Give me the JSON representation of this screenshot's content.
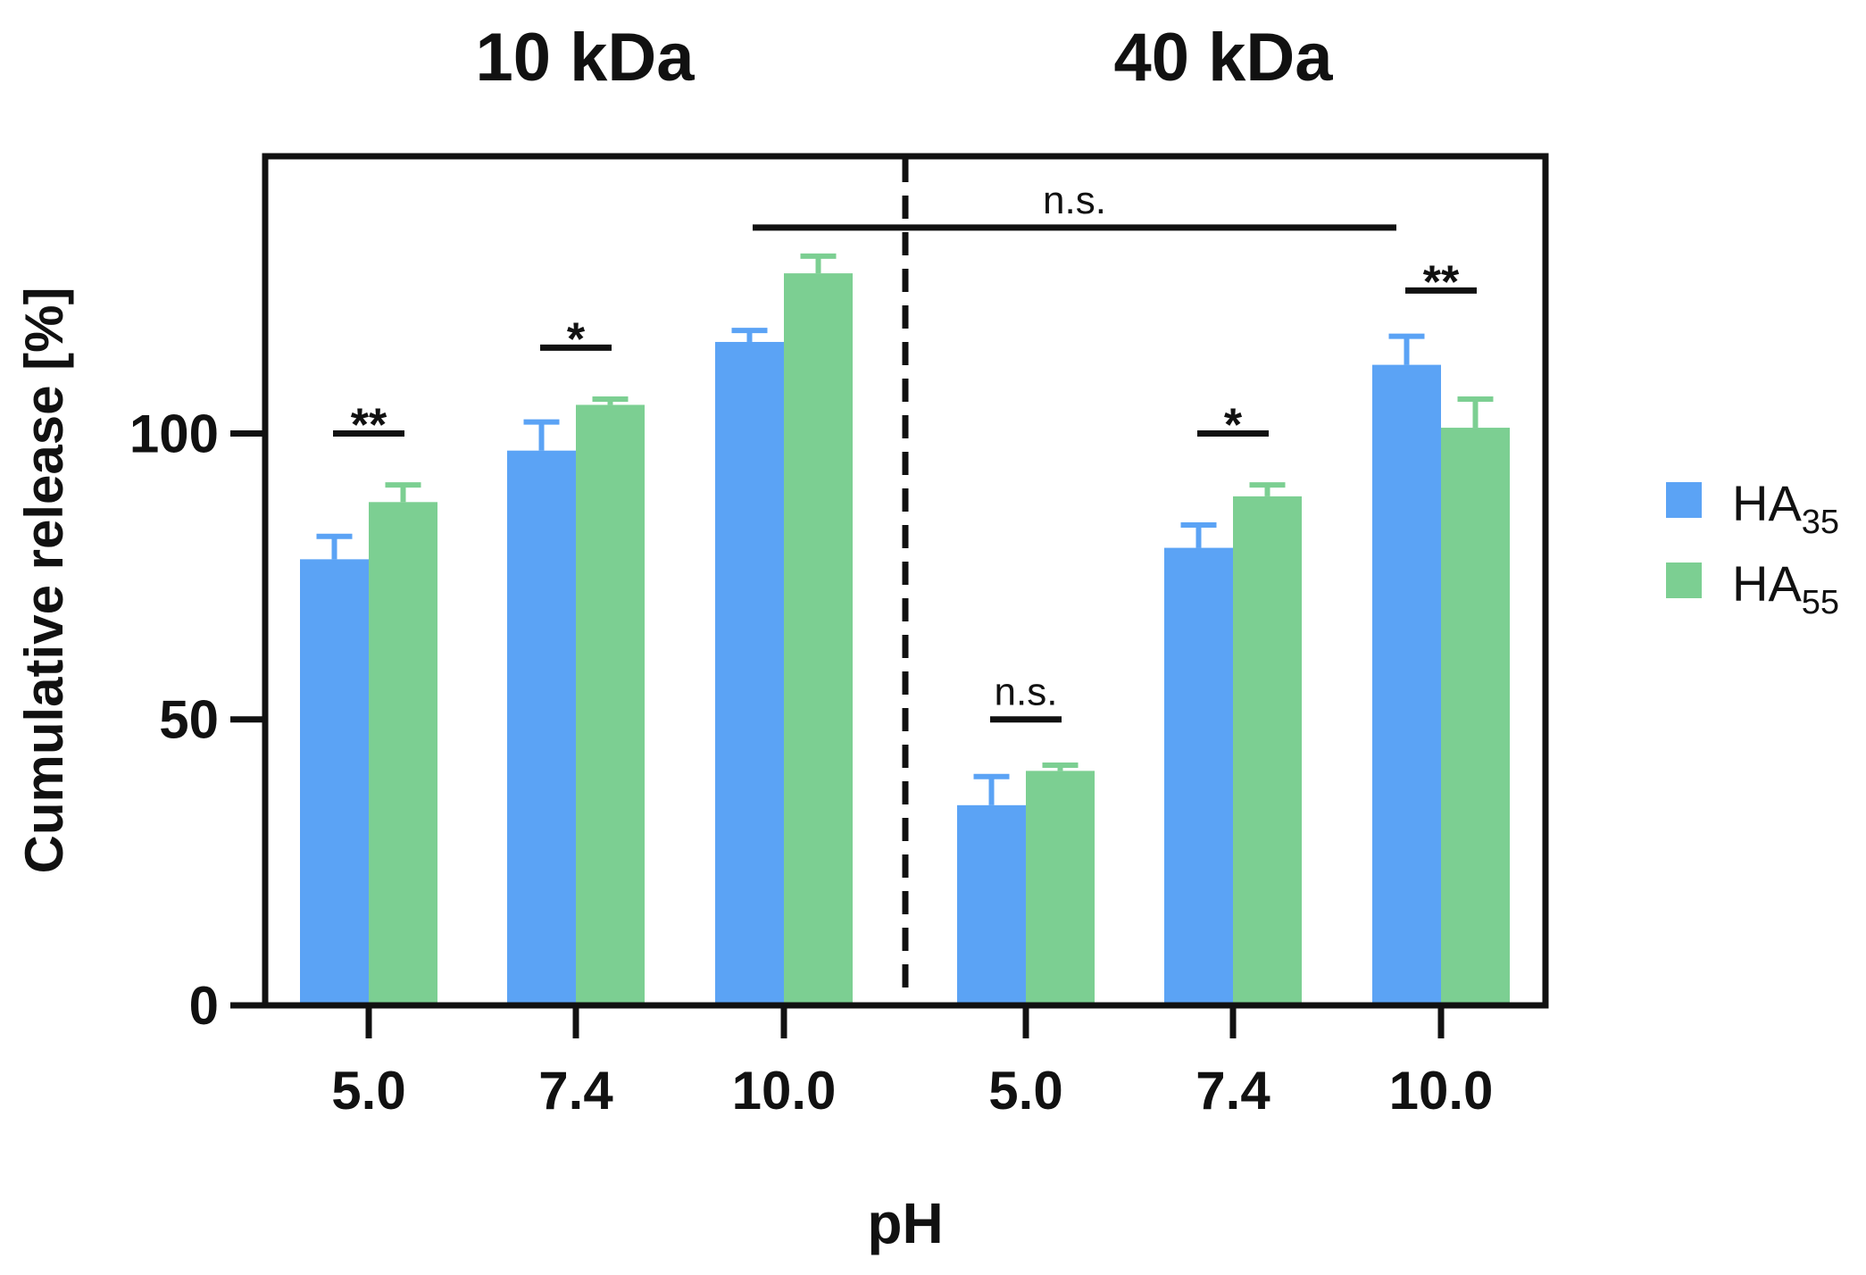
{
  "chart_data": {
    "type": "bar",
    "group_titles": [
      "10 kDa",
      "40 kDa"
    ],
    "categories": [
      "5.0",
      "7.4",
      "10.0",
      "5.0",
      "7.4",
      "10.0"
    ],
    "xlabel": "pH",
    "ylabel": "Cumulative release [%]",
    "ylim": [
      0,
      148
    ],
    "yticks": [
      "0",
      "50",
      "100"
    ],
    "grid": false,
    "legend_position": "right",
    "series": [
      {
        "name": "HA",
        "subscript": "35",
        "color": "#5ba3f5",
        "values": [
          78,
          97,
          116,
          35,
          80,
          112
        ],
        "errors": [
          4,
          5,
          2,
          5,
          4,
          5
        ]
      },
      {
        "name": "HA",
        "subscript": "55",
        "color": "#7ccf92",
        "values": [
          88,
          105,
          128,
          41,
          89,
          101
        ],
        "errors": [
          3,
          1,
          3,
          1,
          2,
          5
        ]
      }
    ],
    "significance": [
      {
        "label": "**",
        "category_index": 0,
        "value": 100
      },
      {
        "label": "*",
        "category_index": 1,
        "value": 115
      },
      {
        "label": "*",
        "category_index": 4,
        "value": 100
      },
      {
        "label": "**",
        "category_index": 5,
        "value": 125
      },
      {
        "label": "n.s.",
        "category_index": 3,
        "value": 50
      },
      {
        "label": "n.s.",
        "from_category": 2,
        "to_category": 5,
        "value": 136
      }
    ]
  }
}
